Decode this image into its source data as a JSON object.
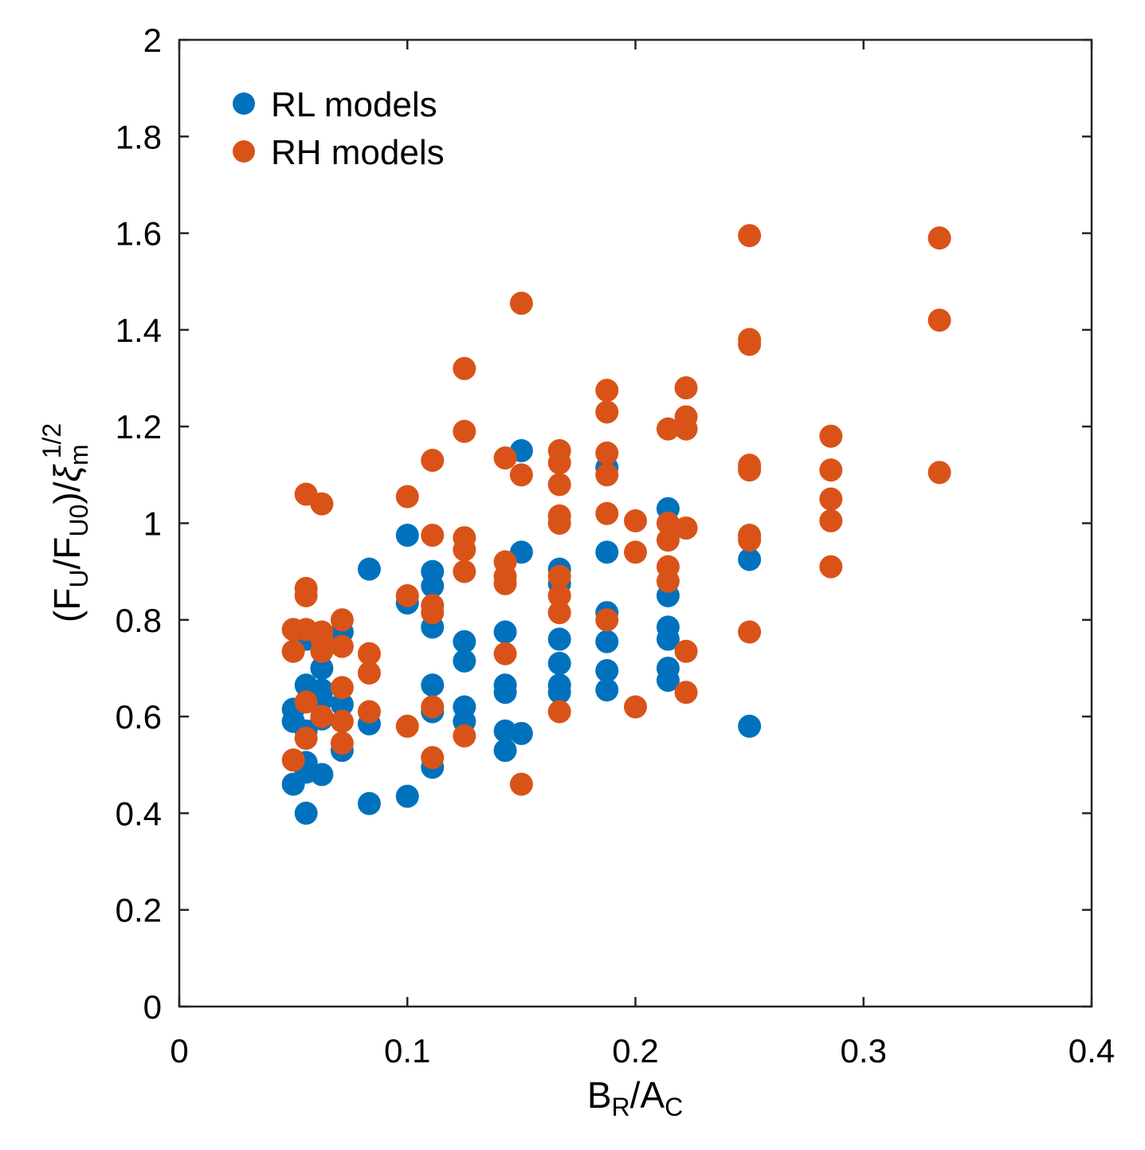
{
  "chart_data": {
    "type": "scatter",
    "xlabel": {
      "main": "B",
      "sub1": "R",
      "mid": "/A",
      "sub2": "C"
    },
    "ylabel": {
      "pre": "(F",
      "sub1": "U",
      "mid1": "/F",
      "sub2": "U0",
      "mid2": ")/",
      "sym": "ξ",
      "sub3": "m",
      "sup": "1/2"
    },
    "xlim": [
      0,
      0.4
    ],
    "ylim": [
      0,
      2
    ],
    "xticks": [
      "0",
      "0.1",
      "0.2",
      "0.3",
      "0.4"
    ],
    "yticks": [
      "0",
      "0.2",
      "0.4",
      "0.6",
      "0.8",
      "1",
      "1.2",
      "1.4",
      "1.6",
      "1.8",
      "2"
    ],
    "grid": false,
    "legend_position": "top-left",
    "series": [
      {
        "name": "RL models",
        "color": "#0072BD",
        "points": [
          [
            0.05,
            0.615
          ],
          [
            0.05,
            0.59
          ],
          [
            0.05,
            0.46
          ],
          [
            0.0556,
            0.76
          ],
          [
            0.0556,
            0.665
          ],
          [
            0.0556,
            0.57
          ],
          [
            0.0556,
            0.505
          ],
          [
            0.0556,
            0.485
          ],
          [
            0.0556,
            0.4
          ],
          [
            0.0625,
            0.7
          ],
          [
            0.0625,
            0.655
          ],
          [
            0.0625,
            0.635
          ],
          [
            0.0625,
            0.595
          ],
          [
            0.0625,
            0.48
          ],
          [
            0.0714,
            0.775
          ],
          [
            0.0714,
            0.625
          ],
          [
            0.0714,
            0.53
          ],
          [
            0.0833,
            0.905
          ],
          [
            0.0833,
            0.585
          ],
          [
            0.0833,
            0.42
          ],
          [
            0.1,
            0.975
          ],
          [
            0.1,
            0.835
          ],
          [
            0.1,
            0.435
          ],
          [
            0.111,
            0.9
          ],
          [
            0.111,
            0.87
          ],
          [
            0.111,
            0.785
          ],
          [
            0.111,
            0.665
          ],
          [
            0.111,
            0.61
          ],
          [
            0.111,
            0.495
          ],
          [
            0.125,
            0.755
          ],
          [
            0.125,
            0.715
          ],
          [
            0.125,
            0.62
          ],
          [
            0.125,
            0.59
          ],
          [
            0.1429,
            0.775
          ],
          [
            0.1429,
            0.665
          ],
          [
            0.1429,
            0.65
          ],
          [
            0.1429,
            0.57
          ],
          [
            0.1429,
            0.53
          ],
          [
            0.15,
            1.15
          ],
          [
            0.15,
            0.94
          ],
          [
            0.15,
            0.565
          ],
          [
            0.1667,
            0.905
          ],
          [
            0.1667,
            0.875
          ],
          [
            0.1667,
            0.76
          ],
          [
            0.1667,
            0.71
          ],
          [
            0.1667,
            0.665
          ],
          [
            0.1667,
            0.65
          ],
          [
            0.1875,
            1.115
          ],
          [
            0.1875,
            0.94
          ],
          [
            0.1875,
            0.815
          ],
          [
            0.1875,
            0.755
          ],
          [
            0.1875,
            0.695
          ],
          [
            0.1875,
            0.655
          ],
          [
            0.2143,
            1.03
          ],
          [
            0.2143,
            0.85
          ],
          [
            0.2143,
            0.785
          ],
          [
            0.2143,
            0.76
          ],
          [
            0.2143,
            0.7
          ],
          [
            0.2143,
            0.675
          ],
          [
            0.25,
            0.925
          ],
          [
            0.25,
            0.58
          ]
        ]
      },
      {
        "name": "RH models",
        "color": "#D95319",
        "points": [
          [
            0.05,
            0.78
          ],
          [
            0.05,
            0.735
          ],
          [
            0.05,
            0.51
          ],
          [
            0.0556,
            1.06
          ],
          [
            0.0556,
            0.865
          ],
          [
            0.0556,
            0.85
          ],
          [
            0.0556,
            0.78
          ],
          [
            0.0556,
            0.63
          ],
          [
            0.0556,
            0.555
          ],
          [
            0.0625,
            1.04
          ],
          [
            0.0625,
            0.775
          ],
          [
            0.0625,
            0.76
          ],
          [
            0.0625,
            0.735
          ],
          [
            0.0625,
            0.6
          ],
          [
            0.0714,
            0.8
          ],
          [
            0.0714,
            0.745
          ],
          [
            0.0714,
            0.66
          ],
          [
            0.0714,
            0.59
          ],
          [
            0.0714,
            0.545
          ],
          [
            0.0833,
            0.73
          ],
          [
            0.0833,
            0.69
          ],
          [
            0.0833,
            0.61
          ],
          [
            0.1,
            1.055
          ],
          [
            0.1,
            0.85
          ],
          [
            0.1,
            0.58
          ],
          [
            0.111,
            1.13
          ],
          [
            0.111,
            0.975
          ],
          [
            0.111,
            0.83
          ],
          [
            0.111,
            0.815
          ],
          [
            0.111,
            0.62
          ],
          [
            0.111,
            0.515
          ],
          [
            0.125,
            1.32
          ],
          [
            0.125,
            1.19
          ],
          [
            0.125,
            0.97
          ],
          [
            0.125,
            0.945
          ],
          [
            0.125,
            0.9
          ],
          [
            0.125,
            0.56
          ],
          [
            0.1429,
            1.135
          ],
          [
            0.1429,
            0.92
          ],
          [
            0.1429,
            0.89
          ],
          [
            0.1429,
            0.875
          ],
          [
            0.1429,
            0.73
          ],
          [
            0.15,
            1.455
          ],
          [
            0.15,
            1.1
          ],
          [
            0.15,
            0.46
          ],
          [
            0.1667,
            1.15
          ],
          [
            0.1667,
            1.125
          ],
          [
            0.1667,
            1.08
          ],
          [
            0.1667,
            1.015
          ],
          [
            0.1667,
            1.0
          ],
          [
            0.1667,
            0.89
          ],
          [
            0.1667,
            0.85
          ],
          [
            0.1667,
            0.815
          ],
          [
            0.1667,
            0.61
          ],
          [
            0.1875,
            1.275
          ],
          [
            0.1875,
            1.23
          ],
          [
            0.1875,
            1.145
          ],
          [
            0.1875,
            1.1
          ],
          [
            0.1875,
            1.02
          ],
          [
            0.1875,
            0.8
          ],
          [
            0.2,
            1.005
          ],
          [
            0.2,
            0.94
          ],
          [
            0.2,
            0.62
          ],
          [
            0.2143,
            1.195
          ],
          [
            0.2143,
            1.0
          ],
          [
            0.2143,
            0.965
          ],
          [
            0.2143,
            0.91
          ],
          [
            0.2143,
            0.88
          ],
          [
            0.2222,
            1.28
          ],
          [
            0.2222,
            1.22
          ],
          [
            0.2222,
            1.195
          ],
          [
            0.2222,
            0.99
          ],
          [
            0.2222,
            0.735
          ],
          [
            0.2222,
            0.65
          ],
          [
            0.25,
            1.595
          ],
          [
            0.25,
            1.38
          ],
          [
            0.25,
            1.37
          ],
          [
            0.25,
            1.12
          ],
          [
            0.25,
            1.11
          ],
          [
            0.25,
            0.975
          ],
          [
            0.25,
            0.965
          ],
          [
            0.25,
            0.775
          ],
          [
            0.2857,
            1.18
          ],
          [
            0.2857,
            1.11
          ],
          [
            0.2857,
            1.05
          ],
          [
            0.2857,
            1.005
          ],
          [
            0.2857,
            0.91
          ],
          [
            0.3333,
            1.59
          ],
          [
            0.3333,
            1.42
          ],
          [
            0.3333,
            1.105
          ]
        ]
      }
    ]
  }
}
